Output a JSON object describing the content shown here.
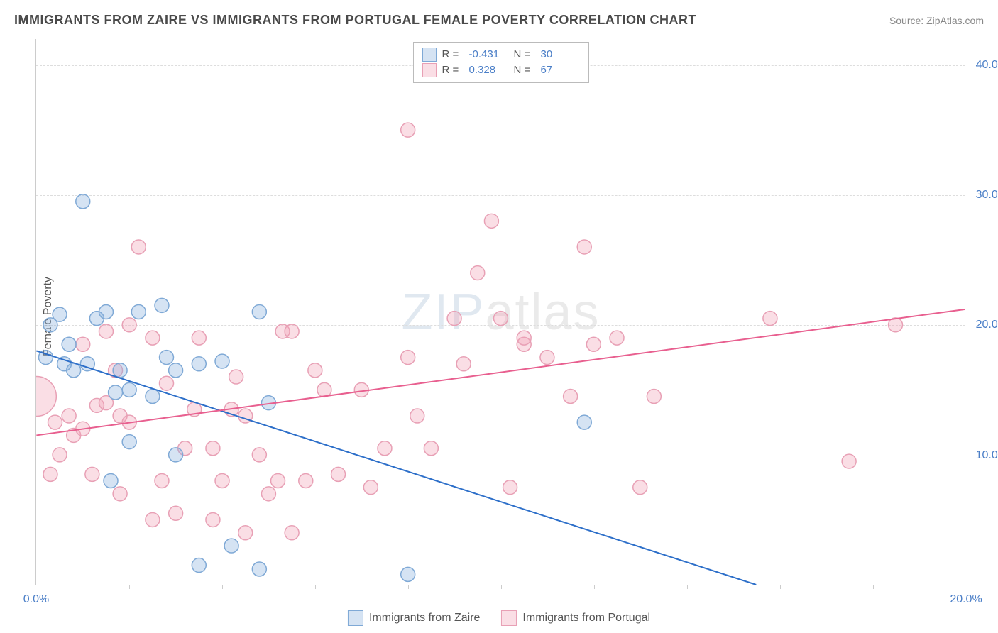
{
  "title": "IMMIGRANTS FROM ZAIRE VS IMMIGRANTS FROM PORTUGAL FEMALE POVERTY CORRELATION CHART",
  "source": "Source: ZipAtlas.com",
  "ylabel": "Female Poverty",
  "watermark_zip": "ZIP",
  "watermark_atlas": "atlas",
  "chart": {
    "type": "scatter",
    "xlim": [
      0,
      20
    ],
    "ylim": [
      0,
      42
    ],
    "x_ticks": [
      0,
      20
    ],
    "x_tick_labels": [
      "0.0%",
      "20.0%"
    ],
    "x_minor_ticks": [
      2,
      4,
      6,
      8,
      10,
      12,
      14,
      16,
      18
    ],
    "y_ticks": [
      10,
      20,
      30,
      40
    ],
    "y_tick_labels": [
      "10.0%",
      "20.0%",
      "30.0%",
      "40.0%"
    ],
    "background_color": "#ffffff",
    "grid_color": "#dddddd",
    "axis_color": "#cccccc",
    "tick_label_color": "#4a7ec7",
    "marker_radius": 10,
    "series": [
      {
        "name": "Immigrants from Zaire",
        "fill": "rgba(135,175,220,0.35)",
        "stroke": "#7fa9d6",
        "r_label": "R =",
        "r_value": "-0.431",
        "n_label": "N =",
        "n_value": "30",
        "trend": {
          "x1": 0,
          "y1": 18.0,
          "x2": 15.5,
          "y2": 0,
          "color": "#2d6fc9",
          "width": 2
        },
        "points": [
          [
            0.2,
            17.5
          ],
          [
            0.3,
            20.0
          ],
          [
            0.5,
            20.8
          ],
          [
            0.6,
            17.0
          ],
          [
            0.7,
            18.5
          ],
          [
            0.8,
            16.5
          ],
          [
            1.0,
            29.5
          ],
          [
            1.1,
            17.0
          ],
          [
            1.3,
            20.5
          ],
          [
            1.5,
            21.0
          ],
          [
            1.6,
            8.0
          ],
          [
            1.7,
            14.8
          ],
          [
            1.8,
            16.5
          ],
          [
            2.0,
            11.0
          ],
          [
            2.0,
            15.0
          ],
          [
            2.2,
            21.0
          ],
          [
            2.5,
            14.5
          ],
          [
            2.7,
            21.5
          ],
          [
            2.8,
            17.5
          ],
          [
            3.0,
            10.0
          ],
          [
            3.0,
            16.5
          ],
          [
            3.5,
            1.5
          ],
          [
            3.5,
            17.0
          ],
          [
            4.0,
            17.2
          ],
          [
            4.2,
            3.0
          ],
          [
            4.8,
            21.0
          ],
          [
            4.8,
            1.2
          ],
          [
            5.0,
            14.0
          ],
          [
            8.0,
            0.8
          ],
          [
            11.8,
            12.5
          ]
        ]
      },
      {
        "name": "Immigrants from Portugal",
        "fill": "rgba(240,160,180,0.35)",
        "stroke": "#e8a0b5",
        "r_label": "R =",
        "r_value": "0.328",
        "n_label": "N =",
        "n_value": "67",
        "trend": {
          "x1": 0,
          "y1": 11.5,
          "x2": 20,
          "y2": 21.2,
          "color": "#e85f8f",
          "width": 2
        },
        "points": [
          [
            0.3,
            8.5
          ],
          [
            0.4,
            12.5
          ],
          [
            0.5,
            10.0
          ],
          [
            0.7,
            13.0
          ],
          [
            0.8,
            11.5
          ],
          [
            1.0,
            12.0
          ],
          [
            1.0,
            18.5
          ],
          [
            1.2,
            8.5
          ],
          [
            1.3,
            13.8
          ],
          [
            1.5,
            14.0
          ],
          [
            1.5,
            19.5
          ],
          [
            1.7,
            16.5
          ],
          [
            1.8,
            7.0
          ],
          [
            1.8,
            13.0
          ],
          [
            2.0,
            20.0
          ],
          [
            2.0,
            12.5
          ],
          [
            2.2,
            26.0
          ],
          [
            2.5,
            5.0
          ],
          [
            2.5,
            19.0
          ],
          [
            2.7,
            8.0
          ],
          [
            2.8,
            15.5
          ],
          [
            3.0,
            5.5
          ],
          [
            3.2,
            10.5
          ],
          [
            3.4,
            13.5
          ],
          [
            3.5,
            19.0
          ],
          [
            3.8,
            5.0
          ],
          [
            3.8,
            10.5
          ],
          [
            4.0,
            8.0
          ],
          [
            4.2,
            13.5
          ],
          [
            4.3,
            16.0
          ],
          [
            4.5,
            4.0
          ],
          [
            4.5,
            13.0
          ],
          [
            4.8,
            10.0
          ],
          [
            5.0,
            7.0
          ],
          [
            5.2,
            8.0
          ],
          [
            5.3,
            19.5
          ],
          [
            5.5,
            4.0
          ],
          [
            5.5,
            19.5
          ],
          [
            5.8,
            8.0
          ],
          [
            6.0,
            16.5
          ],
          [
            6.2,
            15.0
          ],
          [
            6.5,
            8.5
          ],
          [
            7.0,
            15.0
          ],
          [
            7.2,
            7.5
          ],
          [
            7.5,
            10.5
          ],
          [
            8.0,
            17.5
          ],
          [
            8.0,
            35.0
          ],
          [
            8.2,
            13.0
          ],
          [
            8.5,
            10.5
          ],
          [
            9.0,
            20.5
          ],
          [
            9.2,
            17.0
          ],
          [
            9.5,
            24.0
          ],
          [
            9.8,
            28.0
          ],
          [
            10.0,
            20.5
          ],
          [
            10.2,
            7.5
          ],
          [
            10.5,
            18.5
          ],
          [
            10.5,
            19.0
          ],
          [
            11.0,
            17.5
          ],
          [
            11.5,
            14.5
          ],
          [
            11.8,
            26.0
          ],
          [
            12.0,
            18.5
          ],
          [
            12.5,
            19.0
          ],
          [
            13.0,
            7.5
          ],
          [
            13.3,
            14.5
          ],
          [
            15.8,
            20.5
          ],
          [
            17.5,
            9.5
          ],
          [
            18.5,
            20.0
          ]
        ],
        "big_point": {
          "x": 0,
          "y": 14.5,
          "r": 28
        }
      }
    ]
  },
  "legend_top": {
    "border_color": "#bbbbbb"
  },
  "legend_bottom": {}
}
